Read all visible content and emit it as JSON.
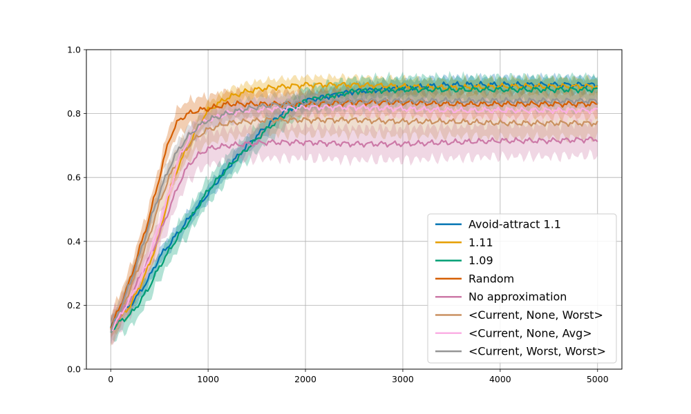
{
  "chart_data": {
    "type": "line",
    "title": "",
    "xlabel": "",
    "ylabel": "",
    "xlim": [
      -250,
      5250
    ],
    "ylim": [
      0.0,
      1.0
    ],
    "x_ticks": [
      0,
      1000,
      2000,
      3000,
      4000,
      5000
    ],
    "x_tick_labels": [
      "0",
      "1000",
      "2000",
      "3000",
      "4000",
      "5000"
    ],
    "y_ticks": [
      0.0,
      0.2,
      0.4,
      0.6,
      0.8,
      1.0
    ],
    "y_tick_labels": [
      "0.0",
      "0.2",
      "0.4",
      "0.6",
      "0.8",
      "1.0"
    ],
    "grid": true,
    "legend_position": "lower-right",
    "x": [
      0,
      100,
      200,
      300,
      400,
      500,
      600,
      700,
      800,
      900,
      1000,
      1200,
      1400,
      1600,
      1800,
      2000,
      2500,
      3000,
      3500,
      4000,
      4500,
      5000
    ],
    "series": [
      {
        "name": "Avoid-attract 1.1",
        "color": "#0072b2",
        "values": [
          0.13,
          0.17,
          0.2,
          0.24,
          0.29,
          0.35,
          0.39,
          0.43,
          0.47,
          0.51,
          0.55,
          0.63,
          0.7,
          0.76,
          0.81,
          0.84,
          0.87,
          0.88,
          0.89,
          0.89,
          0.89,
          0.89
        ],
        "band": 0.025
      },
      {
        "name": "1.11",
        "color": "#e69f00",
        "values": [
          0.12,
          0.16,
          0.2,
          0.26,
          0.33,
          0.42,
          0.55,
          0.64,
          0.7,
          0.76,
          0.81,
          0.85,
          0.87,
          0.88,
          0.885,
          0.89,
          0.89,
          0.885,
          0.88,
          0.885,
          0.885,
          0.885
        ],
        "band": 0.025
      },
      {
        "name": "1.09",
        "color": "#009e73",
        "values": [
          0.12,
          0.15,
          0.17,
          0.21,
          0.26,
          0.32,
          0.37,
          0.42,
          0.46,
          0.51,
          0.56,
          0.63,
          0.69,
          0.75,
          0.8,
          0.84,
          0.87,
          0.875,
          0.875,
          0.875,
          0.875,
          0.875
        ],
        "band": 0.04
      },
      {
        "name": "Random",
        "color": "#d55e00",
        "values": [
          0.13,
          0.2,
          0.28,
          0.38,
          0.48,
          0.6,
          0.72,
          0.78,
          0.8,
          0.81,
          0.815,
          0.83,
          0.83,
          0.83,
          0.83,
          0.83,
          0.835,
          0.835,
          0.83,
          0.83,
          0.83,
          0.83
        ],
        "band": 0.04
      },
      {
        "name": "No approximation",
        "color": "#cc79a7",
        "values": [
          0.12,
          0.17,
          0.22,
          0.29,
          0.35,
          0.42,
          0.5,
          0.58,
          0.64,
          0.67,
          0.69,
          0.7,
          0.705,
          0.71,
          0.71,
          0.71,
          0.705,
          0.705,
          0.71,
          0.715,
          0.715,
          0.72
        ],
        "band": 0.05
      },
      {
        "name": "<Current, None, Worst>",
        "color": "#ca9161",
        "values": [
          0.12,
          0.18,
          0.25,
          0.33,
          0.42,
          0.52,
          0.6,
          0.66,
          0.7,
          0.73,
          0.75,
          0.77,
          0.775,
          0.78,
          0.78,
          0.78,
          0.78,
          0.775,
          0.775,
          0.77,
          0.77,
          0.77
        ],
        "band": 0.045
      },
      {
        "name": "<Current, None, Avg>",
        "color": "#fbafe4",
        "values": [
          0.12,
          0.17,
          0.22,
          0.28,
          0.35,
          0.45,
          0.55,
          0.66,
          0.72,
          0.76,
          0.78,
          0.8,
          0.81,
          0.815,
          0.815,
          0.82,
          0.82,
          0.815,
          0.81,
          0.81,
          0.81,
          0.81
        ],
        "band": 0.03
      },
      {
        "name": "<Current, Worst, Worst>",
        "color": "#949494",
        "values": [
          0.12,
          0.19,
          0.27,
          0.36,
          0.46,
          0.55,
          0.63,
          0.69,
          0.73,
          0.76,
          0.78,
          0.8,
          0.815,
          0.825,
          0.83,
          0.835,
          0.84,
          0.84,
          0.84,
          0.84,
          0.84,
          0.84
        ],
        "band": 0.03
      }
    ]
  }
}
